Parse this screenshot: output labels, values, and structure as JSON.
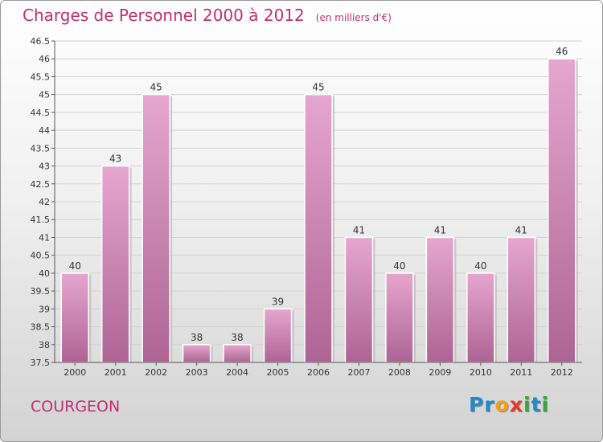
{
  "header": {
    "title": "Charges de Personnel 2000 à 2012",
    "unit": "(en milliers d'€)"
  },
  "footer": {
    "place": "COURGEON",
    "logo_letters": [
      {
        "ch": "P",
        "color": "#1f8ad0"
      },
      {
        "ch": "r",
        "color": "#1f8ad0"
      },
      {
        "ch": "o",
        "color": "#f2a017"
      },
      {
        "ch": "x",
        "color": "#e23a2a"
      },
      {
        "ch": "i",
        "color": "#3aa63a"
      },
      {
        "ch": "t",
        "color": "#1f8ad0"
      },
      {
        "ch": "i",
        "color": "#3aa63a"
      }
    ]
  },
  "colors": {
    "accent": "#c0306e",
    "bar_top": "#e6a6cf",
    "bar_bottom": "#ad6495"
  },
  "chart_data": {
    "type": "bar",
    "title": "Charges de Personnel 2000 à 2012",
    "categories": [
      "2000",
      "2001",
      "2002",
      "2003",
      "2004",
      "2005",
      "2006",
      "2007",
      "2008",
      "2009",
      "2010",
      "2011",
      "2012"
    ],
    "values": [
      40,
      43,
      45,
      38,
      38,
      39,
      45,
      41,
      40,
      41,
      40,
      41,
      46
    ],
    "ylim": [
      37.5,
      46.5
    ],
    "yticks": [
      "37.5",
      "38",
      "38.5",
      "39",
      "39.5",
      "40",
      "40.5",
      "41",
      "41.5",
      "42",
      "42.5",
      "43",
      "43.5",
      "44",
      "44.5",
      "45",
      "45.5",
      "46",
      "46.5"
    ],
    "grid": true,
    "xlabel": "",
    "ylabel": ""
  }
}
